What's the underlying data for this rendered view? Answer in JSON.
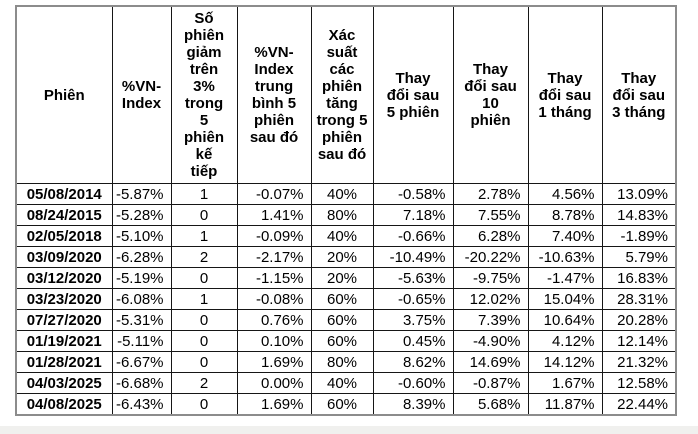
{
  "colors": {
    "background": "#ffffff",
    "outer_border": "#8c8c8c",
    "inner_border": "#161616",
    "text": "#000000",
    "bottom_strip": "#f0f0ee"
  },
  "table": {
    "columns": [
      {
        "label": "Phiên"
      },
      {
        "label": "%VN-\nIndex"
      },
      {
        "label": "Số\nphiên\ngiảm\ntrên\n3%\ntrong\n5\nphiên\nkế\ntiếp"
      },
      {
        "label": "%VN-\nIndex\ntrung\nbình 5\nphiên\nsau đó"
      },
      {
        "label": "Xác\nsuất\ncác\nphiên\ntăng\ntrong 5\nphiên\nsau đó"
      },
      {
        "label": "Thay\nđổi sau\n5 phiên"
      },
      {
        "label": "Thay\nđổi sau\n10\nphiên"
      },
      {
        "label": "Thay\nđổi sau\n1 tháng"
      },
      {
        "label": "Thay\nđổi sau\n3 tháng"
      }
    ],
    "rows": [
      [
        "05/08/2014",
        "-5.87%",
        "1",
        "-0.07%",
        "40%",
        "-0.58%",
        "2.78%",
        "4.56%",
        "13.09%"
      ],
      [
        "08/24/2015",
        "-5.28%",
        "0",
        "1.41%",
        "80%",
        "7.18%",
        "7.55%",
        "8.78%",
        "14.83%"
      ],
      [
        "02/05/2018",
        "-5.10%",
        "1",
        "-0.09%",
        "40%",
        "-0.66%",
        "6.28%",
        "7.40%",
        "-1.89%"
      ],
      [
        "03/09/2020",
        "-6.28%",
        "2",
        "-2.17%",
        "20%",
        "-10.49%",
        "-20.22%",
        "-10.63%",
        "5.79%"
      ],
      [
        "03/12/2020",
        "-5.19%",
        "0",
        "-1.15%",
        "20%",
        "-5.63%",
        "-9.75%",
        "-1.47%",
        "16.83%"
      ],
      [
        "03/23/2020",
        "-6.08%",
        "1",
        "-0.08%",
        "60%",
        "-0.65%",
        "12.02%",
        "15.04%",
        "28.31%"
      ],
      [
        "07/27/2020",
        "-5.31%",
        "0",
        "0.76%",
        "60%",
        "3.75%",
        "7.39%",
        "10.64%",
        "20.28%"
      ],
      [
        "01/19/2021",
        "-5.11%",
        "0",
        "0.10%",
        "60%",
        "0.45%",
        "-4.90%",
        "4.12%",
        "12.14%"
      ],
      [
        "01/28/2021",
        "-6.67%",
        "0",
        "1.69%",
        "80%",
        "8.62%",
        "14.69%",
        "14.12%",
        "21.32%"
      ],
      [
        "04/03/2025",
        "-6.68%",
        "2",
        "0.00%",
        "40%",
        "-0.60%",
        "-0.87%",
        "1.67%",
        "12.58%"
      ],
      [
        "04/08/2025",
        "-6.43%",
        "0",
        "1.69%",
        "60%",
        "8.39%",
        "5.68%",
        "11.87%",
        "22.44%"
      ]
    ]
  }
}
